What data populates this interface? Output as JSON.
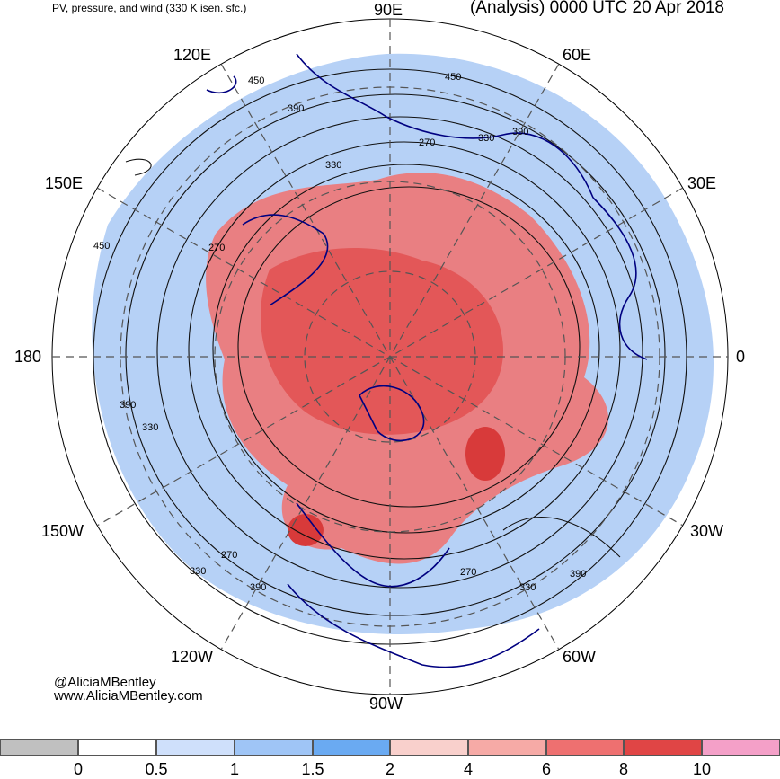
{
  "header": {
    "left": "PV, pressure, and wind (330 K isen. sfc.)",
    "right": "(Analysis) 0000 UTC 20 Apr 2018"
  },
  "longitudes": {
    "e90": "90E",
    "e60": "60E",
    "e120": "120E",
    "e150": "150E",
    "e30": "30E",
    "lon180": "180",
    "lon0": "0",
    "w150": "150W",
    "w30": "30W",
    "w120": "120W",
    "w60": "60W",
    "w90": "90W"
  },
  "contour_labels": [
    "450",
    "390",
    "330",
    "270",
    "330",
    "390",
    "270",
    "450",
    "390",
    "330",
    "270",
    "330",
    "390",
    "270",
    "330",
    "390",
    "450"
  ],
  "credits": {
    "handle": "@AliciaMBentley",
    "site": "www.AliciaMBentley.com"
  },
  "colorbar": {
    "ticks": [
      "0",
      "0.5",
      "1",
      "1.5",
      "2",
      "4",
      "6",
      "8",
      "10"
    ],
    "colors": [
      "#c0c0c0",
      "#ffffff",
      "#cfe0fb",
      "#9fc5f6",
      "#6aaaf2",
      "#f9d0cc",
      "#f6aaa6",
      "#ee7070",
      "#e04545",
      "#f4a0c8"
    ]
  },
  "colors": {
    "blue": "#8fb8f2",
    "red": "#ec6a6a",
    "coast": "#000080",
    "contour": "#111111"
  }
}
